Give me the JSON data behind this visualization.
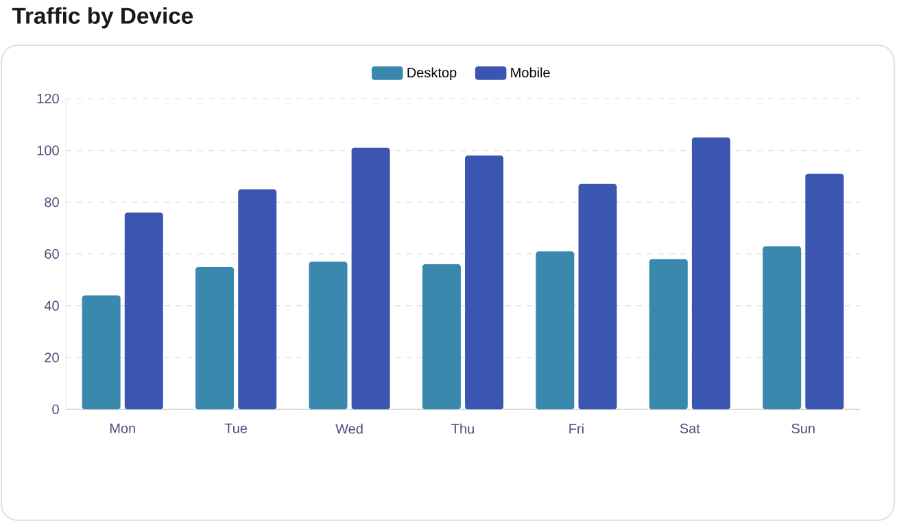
{
  "chart_data": {
    "type": "bar",
    "title": "Traffic by Device",
    "categories": [
      "Mon",
      "Tue",
      "Wed",
      "Thu",
      "Fri",
      "Sat",
      "Sun"
    ],
    "series": [
      {
        "name": "Desktop",
        "color": "#3a88ad",
        "values": [
          44,
          55,
          57,
          56,
          61,
          58,
          63
        ]
      },
      {
        "name": "Mobile",
        "color": "#3b56b0",
        "values": [
          76,
          85,
          101,
          98,
          87,
          105,
          91
        ]
      }
    ],
    "ylim": [
      0,
      120
    ],
    "yticks": [
      0,
      20,
      40,
      60,
      80,
      100,
      120
    ],
    "grid": "y",
    "legend": "top"
  }
}
